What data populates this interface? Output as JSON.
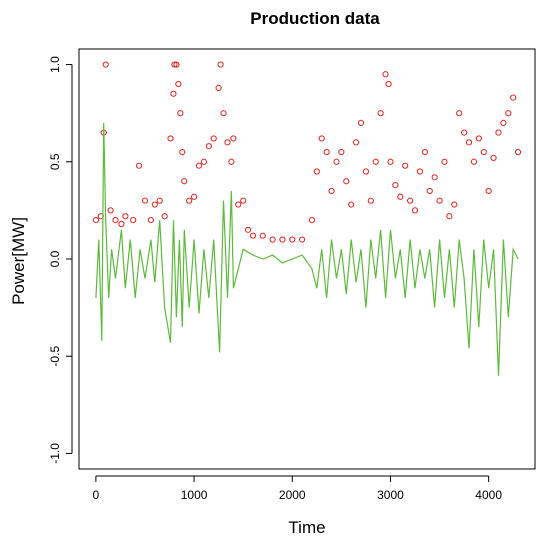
{
  "chart_data": {
    "type": "scatter",
    "title": "Production data",
    "xlabel": "Time",
    "ylabel": "Power[MW]",
    "xlim": [
      0,
      4300
    ],
    "ylim": [
      -1.0,
      1.0
    ],
    "x_ticks": [
      0,
      1000,
      2000,
      3000,
      4000
    ],
    "x_tick_labels": [
      "0",
      "1000",
      "2000",
      "3000",
      "4000"
    ],
    "y_ticks": [
      -1.0,
      -0.5,
      0.0,
      0.5,
      1.0
    ],
    "y_tick_labels": [
      "-1.0",
      "-0.5",
      "0.0",
      "0.5",
      "1.0"
    ],
    "grid": false,
    "legend": "none",
    "series": [
      {
        "type": "scatter",
        "color": "#e8211c",
        "marker": "open-circle",
        "x": [
          0,
          50,
          80,
          100,
          150,
          200,
          260,
          300,
          380,
          440,
          500,
          560,
          600,
          650,
          700,
          760,
          790,
          800,
          820,
          840,
          860,
          880,
          900,
          950,
          1000,
          1050,
          1100,
          1150,
          1200,
          1250,
          1270,
          1300,
          1340,
          1380,
          1400,
          1450,
          1500,
          1550,
          1600,
          1700,
          1800,
          1900,
          2000,
          2100,
          2200,
          2250,
          2300,
          2350,
          2400,
          2450,
          2500,
          2550,
          2600,
          2650,
          2700,
          2750,
          2800,
          2850,
          2900,
          2950,
          2980,
          3000,
          3050,
          3100,
          3150,
          3200,
          3250,
          3300,
          3350,
          3400,
          3450,
          3500,
          3550,
          3600,
          3650,
          3700,
          3750,
          3800,
          3850,
          3900,
          3950,
          4000,
          4050,
          4100,
          4150,
          4200,
          4250,
          4300
        ],
        "y": [
          0.2,
          0.22,
          0.65,
          1.0,
          0.25,
          0.2,
          0.18,
          0.22,
          0.2,
          0.48,
          0.3,
          0.2,
          0.28,
          0.3,
          0.22,
          0.62,
          0.85,
          1.0,
          1.0,
          0.9,
          0.75,
          0.55,
          0.4,
          0.3,
          0.32,
          0.48,
          0.5,
          0.58,
          0.62,
          0.88,
          1.0,
          0.75,
          0.6,
          0.5,
          0.62,
          0.28,
          0.3,
          0.15,
          0.12,
          0.12,
          0.1,
          0.1,
          0.1,
          0.1,
          0.2,
          0.45,
          0.62,
          0.55,
          0.35,
          0.5,
          0.55,
          0.4,
          0.28,
          0.6,
          0.7,
          0.45,
          0.3,
          0.5,
          0.75,
          0.95,
          0.9,
          0.5,
          0.38,
          0.32,
          0.48,
          0.3,
          0.25,
          0.45,
          0.55,
          0.35,
          0.42,
          0.3,
          0.5,
          0.22,
          0.28,
          0.75,
          0.65,
          0.6,
          0.5,
          0.62,
          0.55,
          0.35,
          0.52,
          0.65,
          0.7,
          0.75,
          0.83,
          0.55
        ]
      },
      {
        "type": "line",
        "color": "#5dba3c",
        "x": [
          0,
          30,
          60,
          80,
          100,
          130,
          160,
          200,
          260,
          300,
          350,
          400,
          450,
          500,
          560,
          600,
          650,
          700,
          760,
          790,
          820,
          850,
          880,
          900,
          950,
          1000,
          1050,
          1100,
          1150,
          1200,
          1260,
          1300,
          1340,
          1380,
          1400,
          1450,
          1500,
          1600,
          1700,
          1800,
          1900,
          2000,
          2100,
          2200,
          2250,
          2300,
          2350,
          2400,
          2450,
          2500,
          2550,
          2600,
          2650,
          2700,
          2750,
          2800,
          2850,
          2900,
          2950,
          3000,
          3050,
          3100,
          3150,
          3200,
          3250,
          3300,
          3350,
          3400,
          3450,
          3500,
          3550,
          3600,
          3650,
          3700,
          3750,
          3800,
          3850,
          3900,
          3950,
          4000,
          4050,
          4100,
          4150,
          4200,
          4250,
          4300
        ],
        "y": [
          -0.2,
          0.1,
          -0.42,
          0.7,
          0.2,
          -0.2,
          0.05,
          -0.1,
          0.15,
          -0.15,
          0.1,
          -0.2,
          0.05,
          -0.1,
          0.1,
          -0.12,
          0.2,
          -0.25,
          -0.43,
          0.2,
          -0.3,
          0.1,
          -0.35,
          0.15,
          -0.25,
          0.1,
          -0.28,
          0.05,
          -0.2,
          0.1,
          -0.48,
          0.3,
          -0.2,
          0.35,
          -0.15,
          -0.05,
          0.05,
          0.02,
          0.0,
          0.02,
          -0.02,
          0.0,
          0.02,
          -0.05,
          -0.15,
          0.05,
          -0.2,
          0.1,
          -0.1,
          0.05,
          -0.18,
          0.1,
          -0.12,
          0.05,
          -0.25,
          0.1,
          -0.1,
          0.15,
          -0.2,
          0.15,
          -0.1,
          0.05,
          -0.2,
          0.1,
          -0.15,
          0.05,
          -0.1,
          0.05,
          -0.25,
          0.1,
          -0.2,
          0.05,
          -0.25,
          0.1,
          -0.1,
          -0.46,
          0.05,
          -0.35,
          0.1,
          -0.15,
          0.05,
          -0.6,
          0.1,
          -0.3,
          0.05,
          0.0
        ]
      }
    ]
  }
}
